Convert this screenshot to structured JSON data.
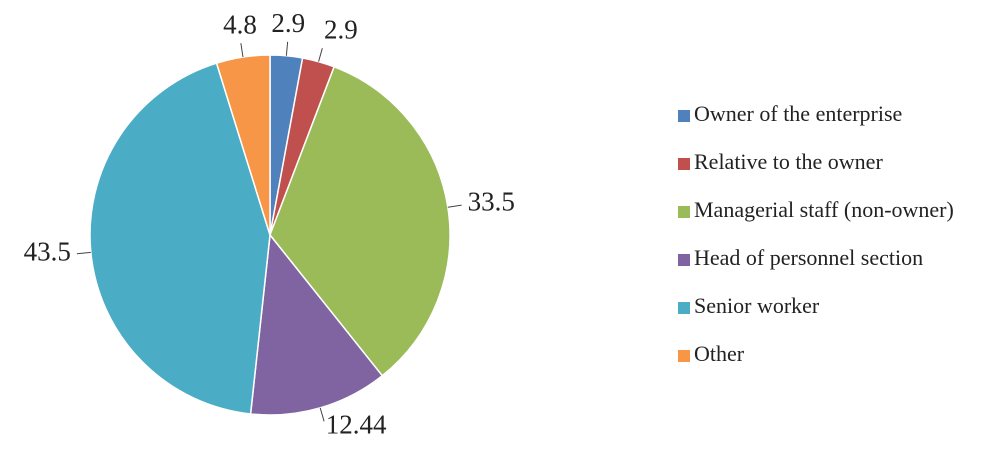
{
  "chart_data": {
    "type": "pie",
    "categories": [
      "Owner of the enterprise",
      "Relative to the owner",
      "Managerial staff (non-owner)",
      "Head of personnel section",
      "Senior worker",
      "Other"
    ],
    "values": [
      2.9,
      2.9,
      33.5,
      12.44,
      43.5,
      4.8
    ],
    "colors": [
      "#4f81bd",
      "#c0504d",
      "#9bbb59",
      "#8064a2",
      "#4bacc6",
      "#f79646"
    ],
    "legend": "right"
  }
}
